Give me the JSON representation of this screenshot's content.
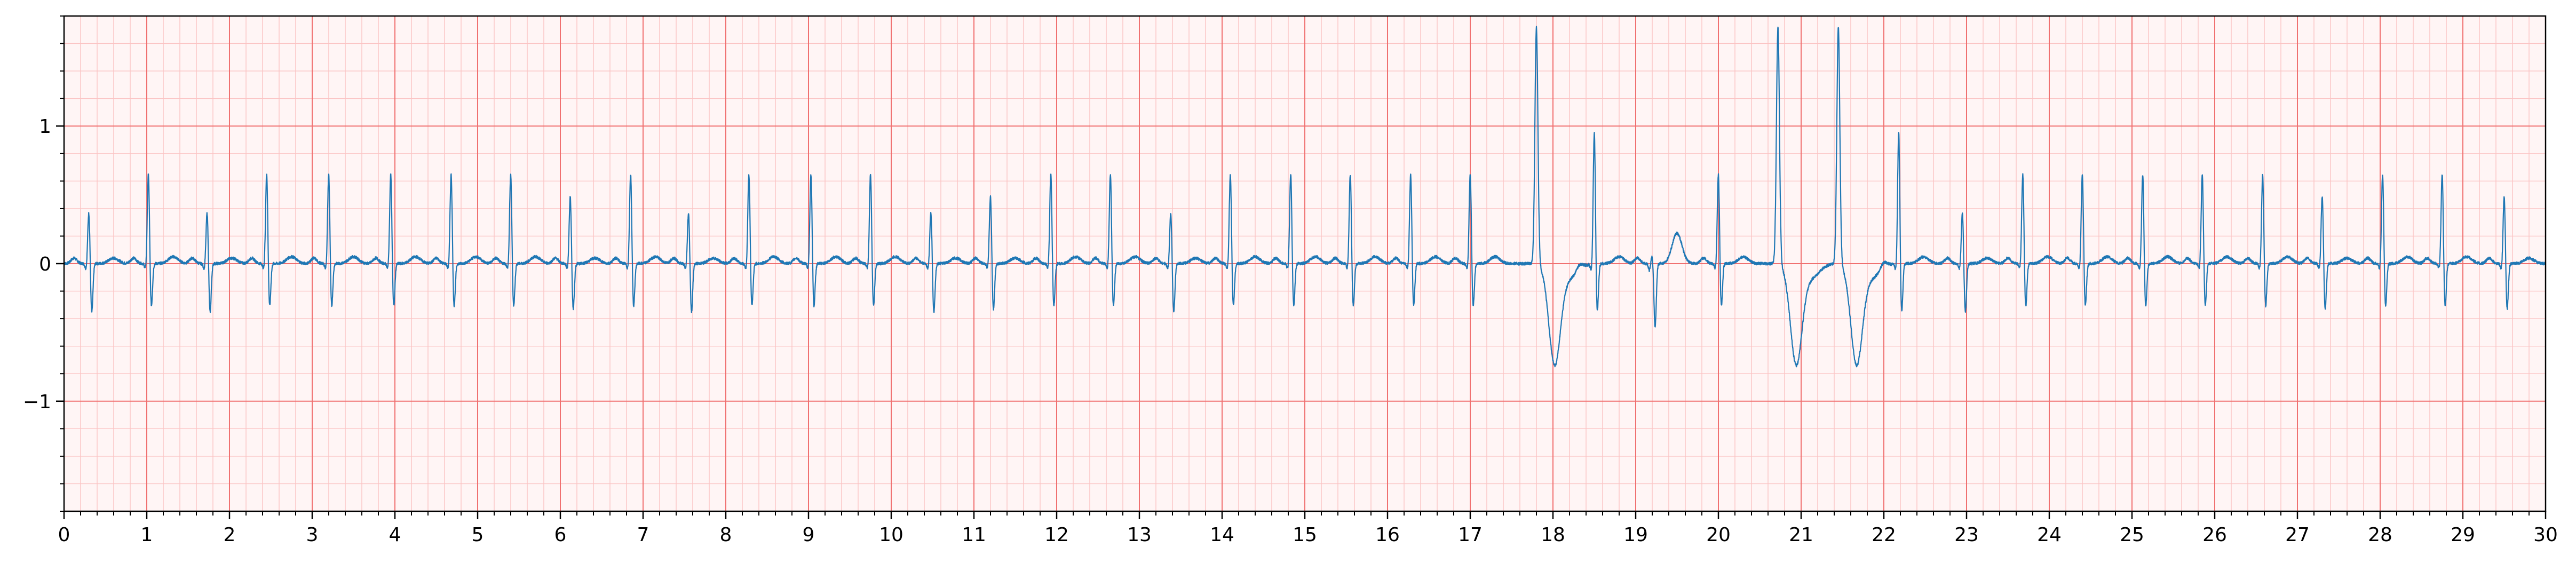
{
  "chart_data": {
    "type": "line",
    "title": "",
    "xlabel": "",
    "ylabel": "",
    "xlim": [
      0,
      30
    ],
    "ylim": [
      -1.8,
      1.8
    ],
    "x_ticks": [
      0,
      1,
      2,
      3,
      4,
      5,
      6,
      7,
      8,
      9,
      10,
      11,
      12,
      13,
      14,
      15,
      16,
      17,
      18,
      19,
      20,
      21,
      22,
      23,
      24,
      25,
      26,
      27,
      28,
      29,
      30
    ],
    "x_tick_labels": [
      "0",
      "1",
      "2",
      "3",
      "4",
      "5",
      "6",
      "7",
      "8",
      "9",
      "10",
      "11",
      "12",
      "13",
      "14",
      "15",
      "16",
      "17",
      "18",
      "19",
      "20",
      "21",
      "22",
      "23",
      "24",
      "25",
      "26",
      "27",
      "28",
      "29",
      "30"
    ],
    "y_ticks": [
      -1,
      0,
      1
    ],
    "y_tick_labels": [
      "−1",
      "0",
      "1"
    ],
    "grid": {
      "major": true,
      "minor": true,
      "major_x_step": 1,
      "major_y_step": 1,
      "minor_x_step": 0.2,
      "minor_y_step": 0.2,
      "major_color": "#f07070",
      "minor_color": "#fbc4c4"
    },
    "line_color": "#1f77b4",
    "background": "#fff5f5",
    "sample_rate": 100,
    "beats": [
      {
        "t": 0.3,
        "kind": "lowR"
      },
      {
        "t": 1.02,
        "kind": "N"
      },
      {
        "t": 1.73,
        "kind": "lowR"
      },
      {
        "t": 2.45,
        "kind": "N"
      },
      {
        "t": 3.2,
        "kind": "N"
      },
      {
        "t": 3.95,
        "kind": "N"
      },
      {
        "t": 4.68,
        "kind": "N"
      },
      {
        "t": 5.4,
        "kind": "N"
      },
      {
        "t": 6.12,
        "kind": "midR"
      },
      {
        "t": 6.85,
        "kind": "N"
      },
      {
        "t": 7.55,
        "kind": "lowR"
      },
      {
        "t": 8.28,
        "kind": "N"
      },
      {
        "t": 9.03,
        "kind": "N"
      },
      {
        "t": 9.75,
        "kind": "N"
      },
      {
        "t": 10.48,
        "kind": "lowR"
      },
      {
        "t": 11.2,
        "kind": "midR"
      },
      {
        "t": 11.93,
        "kind": "N"
      },
      {
        "t": 12.65,
        "kind": "N"
      },
      {
        "t": 13.38,
        "kind": "lowR"
      },
      {
        "t": 14.1,
        "kind": "N"
      },
      {
        "t": 14.83,
        "kind": "N"
      },
      {
        "t": 15.55,
        "kind": "N"
      },
      {
        "t": 16.28,
        "kind": "N"
      },
      {
        "t": 17.0,
        "kind": "N"
      },
      {
        "t": 17.8,
        "kind": "PVC"
      },
      {
        "t": 18.5,
        "kind": "tall"
      },
      {
        "t": 19.2,
        "kind": "neg"
      },
      {
        "t": 20.0,
        "kind": "N"
      },
      {
        "t": 20.72,
        "kind": "PVC"
      },
      {
        "t": 21.45,
        "kind": "PVC"
      },
      {
        "t": 22.18,
        "kind": "tall"
      },
      {
        "t": 22.95,
        "kind": "lowR"
      },
      {
        "t": 23.68,
        "kind": "N"
      },
      {
        "t": 24.4,
        "kind": "N"
      },
      {
        "t": 25.13,
        "kind": "N"
      },
      {
        "t": 25.85,
        "kind": "N"
      },
      {
        "t": 26.58,
        "kind": "N"
      },
      {
        "t": 27.3,
        "kind": "midR"
      },
      {
        "t": 28.03,
        "kind": "N"
      },
      {
        "t": 28.75,
        "kind": "N"
      },
      {
        "t": 29.5,
        "kind": "midR"
      }
    ],
    "beat_kinds": {
      "N": {
        "r": 0.66,
        "q": -0.04,
        "s": -0.32,
        "t": 0.05
      },
      "lowR": {
        "r": 0.38,
        "q": -0.04,
        "s": -0.36,
        "t": 0.04
      },
      "midR": {
        "r": 0.5,
        "q": -0.04,
        "s": -0.34,
        "t": 0.04
      },
      "tall": {
        "r": 0.97,
        "q": -0.05,
        "s": -0.36,
        "t": 0.05
      },
      "neg": {
        "r": 0.06,
        "q": -0.05,
        "s": -0.46,
        "t": 0.22
      },
      "PVC": {
        "r": 1.72,
        "q": -0.08,
        "s": -0.72,
        "t": 0.02
      }
    }
  }
}
